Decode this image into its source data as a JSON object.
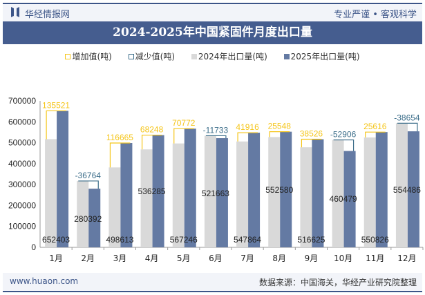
{
  "header": {
    "brand": "华经情报网",
    "slogan": "专业严谨 • 客观科学"
  },
  "title": "2024-2025年中国紧固件月度出口量",
  "legend": [
    "增加值(吨)",
    "减少值(吨)",
    "2024年出口量(吨)",
    "2025年出口量(吨)"
  ],
  "footer": {
    "site": "www.huaon.com",
    "source": "数据来源：中国海关，华经产业研究院整理"
  },
  "colors": {
    "increase": "#f5c518",
    "decrease": "#3c6e8a",
    "y2024": "#d9d9d9",
    "y2025": "#647aa3",
    "title_bar": "#455d8f"
  },
  "chart_data": {
    "type": "bar",
    "categories": [
      "1月",
      "2月",
      "3月",
      "4月",
      "5月",
      "6月",
      "7月",
      "8月",
      "9月",
      "10月",
      "11月",
      "12月"
    ],
    "series": [
      {
        "name": "2024年出口量(吨)",
        "values": [
          516882,
          317156,
          381948,
          468037,
          496474,
          533396,
          505948,
          527032,
          478099,
          513385,
          525210,
          593140
        ]
      },
      {
        "name": "2025年出口量(吨)",
        "values": [
          652403,
          280392,
          498613,
          536285,
          567246,
          521663,
          547864,
          552580,
          516625,
          460479,
          550826,
          554486
        ]
      }
    ],
    "differences": [
      135521,
      -36764,
      116665,
      68248,
      70772,
      -11733,
      41916,
      25548,
      38526,
      -52906,
      25616,
      -38654
    ],
    "ylim": [
      0,
      700000
    ],
    "yticks": [
      0,
      100000,
      200000,
      300000,
      400000,
      500000,
      600000,
      700000
    ],
    "grid": false,
    "legend_position": "top"
  }
}
